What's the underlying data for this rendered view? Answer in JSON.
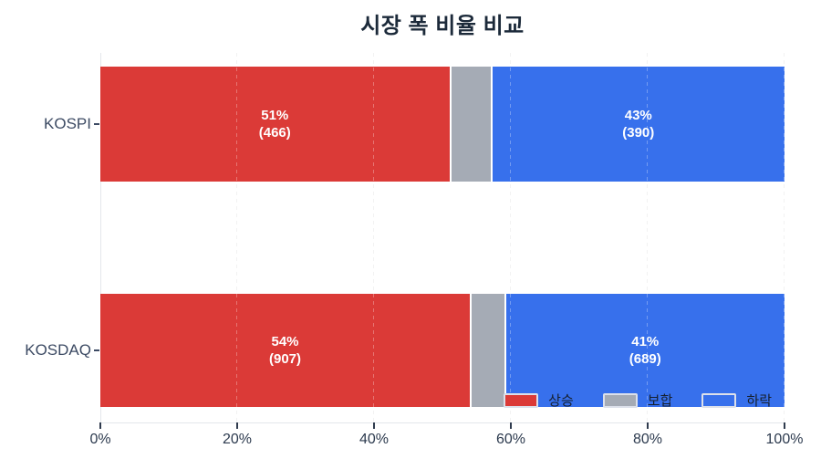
{
  "title": "시장 폭 비율 비교",
  "colors": {
    "advance": "#DB3A37",
    "flat": "#A5ABB5",
    "decline": "#3770EC",
    "bar_label_text": "#FFFFFF",
    "title_text": "#1C2A3A",
    "axis_text": "#2C3A4E",
    "category_text": "#3C4A63",
    "axis_line": "#E4E7EB",
    "gridline": "#ECECEC"
  },
  "legend": {
    "items": [
      {
        "label": "상승",
        "color_key": "advance"
      },
      {
        "label": "보합",
        "color_key": "flat"
      },
      {
        "label": "하락",
        "color_key": "decline"
      }
    ]
  },
  "x_axis": {
    "tick_labels": [
      "0%",
      "20%",
      "40%",
      "60%",
      "80%",
      "100%"
    ]
  },
  "chart_data": {
    "type": "bar",
    "orientation": "horizontal",
    "stacked": true,
    "title": "시장 폭 비율 비교",
    "categories": [
      "KOSPI",
      "KOSDAQ"
    ],
    "series": [
      {
        "name": "상승",
        "values_pct": [
          51,
          54
        ],
        "counts": [
          466,
          907
        ],
        "color": "#DB3A37"
      },
      {
        "name": "보합",
        "values_pct": [
          6,
          5
        ],
        "color": "#A5ABB5"
      },
      {
        "name": "하락",
        "values_pct": [
          43,
          41
        ],
        "counts": [
          390,
          689
        ],
        "color": "#3770EC"
      }
    ],
    "xlim": [
      0,
      100
    ],
    "x_tick_labels": [
      "0%",
      "20%",
      "40%",
      "60%",
      "80%",
      "100%"
    ],
    "gridlines_pct": [
      20,
      40,
      60,
      80,
      100
    ],
    "legend_position": "inside-bottom-right",
    "grid": true,
    "rows": [
      {
        "category": "KOSPI",
        "segments": [
          {
            "series": "상승",
            "pct": 51,
            "label_pct": "51%",
            "label_count": "(466)"
          },
          {
            "series": "보합",
            "pct": 6
          },
          {
            "series": "하락",
            "pct": 43,
            "label_pct": "43%",
            "label_count": "(390)"
          }
        ]
      },
      {
        "category": "KOSDAQ",
        "segments": [
          {
            "series": "상승",
            "pct": 54,
            "label_pct": "54%",
            "label_count": "(907)"
          },
          {
            "series": "보합",
            "pct": 5
          },
          {
            "series": "하락",
            "pct": 41,
            "label_pct": "41%",
            "label_count": "(689)"
          }
        ]
      }
    ]
  }
}
